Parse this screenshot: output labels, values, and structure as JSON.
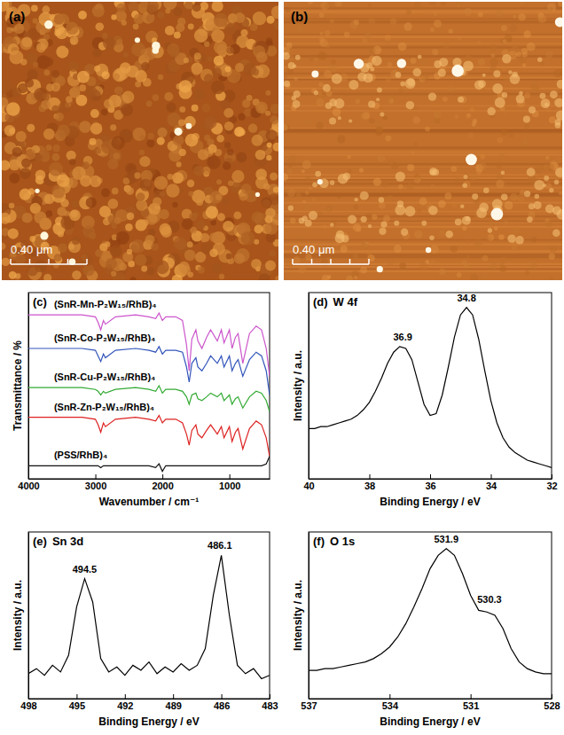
{
  "images": [
    {
      "panel": "(a)",
      "scale_bar": "0.40 μm"
    },
    {
      "panel": "(b)",
      "scale_bar": "0.40 μm"
    }
  ],
  "chart_data": [
    {
      "type": "line",
      "panel": "(c)",
      "x_label": "Wavenumber / cm⁻¹",
      "y_label": "Transmittance / %",
      "x": [
        4000,
        3500,
        3200,
        3000,
        2960,
        2920,
        2880,
        2850,
        2700,
        2400,
        2200,
        2100,
        2050,
        2000,
        1950,
        1800,
        1700,
        1640,
        1600,
        1560,
        1500,
        1470,
        1410,
        1340,
        1280,
        1180,
        1120,
        1080,
        1000,
        960,
        910,
        870,
        800,
        700,
        600,
        520,
        450,
        400
      ],
      "series": [
        {
          "name": "(SnR-Mn-P₂W₁₅/RhB)₄",
          "color": "#cc55cc",
          "values": [
            88,
            88,
            88,
            87,
            84,
            80,
            85,
            83,
            87,
            88,
            87,
            86,
            89,
            85,
            87,
            87,
            85,
            72,
            58,
            75,
            80,
            74,
            70,
            76,
            80,
            74,
            80,
            73,
            80,
            70,
            76,
            78,
            62,
            78,
            82,
            80,
            70,
            55
          ]
        },
        {
          "name": "(SnR-Co-P₂W₁₅/RhB)₄",
          "color": "#3355bb",
          "values": [
            70,
            70,
            70,
            69,
            66,
            63,
            67,
            65,
            69,
            70,
            69,
            68,
            71,
            67,
            69,
            69,
            68,
            60,
            52,
            62,
            65,
            60,
            58,
            62,
            66,
            62,
            66,
            60,
            66,
            58,
            62,
            64,
            55,
            64,
            68,
            66,
            58,
            45
          ]
        },
        {
          "name": "(SnR-Cu-P₂W₁₅/RhB)₄",
          "color": "#33aa33",
          "values": [
            49,
            49,
            49,
            48,
            47,
            45,
            47,
            46,
            48,
            49,
            48,
            47,
            50,
            46,
            48,
            48,
            47,
            44,
            40,
            45,
            46,
            43,
            42,
            44,
            46,
            44,
            46,
            42,
            45,
            40,
            43,
            44,
            38,
            44,
            47,
            46,
            42,
            36
          ]
        },
        {
          "name": "(SnR-Zn-P₂W₁₅/RhB)₄",
          "color": "#dd2222",
          "values": [
            33,
            33,
            33,
            32,
            29,
            25,
            30,
            28,
            32,
            33,
            32,
            31,
            34,
            30,
            32,
            32,
            30,
            24,
            18,
            26,
            29,
            24,
            22,
            26,
            29,
            24,
            28,
            22,
            28,
            20,
            25,
            27,
            16,
            27,
            31,
            29,
            22,
            12
          ]
        },
        {
          "name": "(PSS/RhB)₄",
          "color": "#111111",
          "values": [
            7,
            7,
            7,
            7,
            7,
            6,
            7,
            7,
            7,
            7,
            7,
            6,
            8,
            4,
            7,
            7,
            7,
            7,
            7,
            7,
            7,
            7,
            7,
            7,
            7,
            7,
            7,
            7,
            7,
            7,
            7,
            7,
            7,
            7,
            7,
            7,
            8,
            12
          ]
        }
      ],
      "xlim": [
        4000,
        400
      ],
      "xticks": [
        4000,
        3000,
        2000,
        1000
      ],
      "ylim": [
        0,
        100
      ],
      "yticks": [],
      "tick_labels": "x"
    },
    {
      "type": "line",
      "panel": "(d)",
      "title": "W 4f",
      "x_label": "Binding Energy / eV",
      "y_label": "Intensity / a.u.",
      "x": [
        40.0,
        39.8,
        39.6,
        39.4,
        39.2,
        39.0,
        38.8,
        38.6,
        38.4,
        38.2,
        38.0,
        37.8,
        37.6,
        37.4,
        37.2,
        37.0,
        36.8,
        36.6,
        36.4,
        36.2,
        36.0,
        35.8,
        35.6,
        35.4,
        35.2,
        35.0,
        34.8,
        34.6,
        34.4,
        34.2,
        34.0,
        33.8,
        33.6,
        33.4,
        33.2,
        33.0,
        32.8,
        32.6,
        32.4,
        32.2,
        32.0
      ],
      "values": [
        27,
        27,
        28,
        28,
        29,
        30,
        31,
        32,
        34,
        37,
        41,
        47,
        54,
        62,
        68,
        71,
        70,
        64,
        52,
        40,
        34,
        35,
        45,
        60,
        76,
        88,
        92,
        88,
        75,
        58,
        42,
        30,
        22,
        17,
        14,
        12,
        10,
        9,
        8,
        7,
        6
      ],
      "color": "#000000",
      "annotations": [
        {
          "text": "36.9",
          "x": 36.9,
          "y": 71
        },
        {
          "text": "34.8",
          "x": 34.8,
          "y": 92
        }
      ],
      "xlim": [
        40,
        32
      ],
      "xticks": [
        40,
        38,
        36,
        34,
        32
      ],
      "ylim": [
        0,
        100
      ],
      "yticks": [],
      "tick_labels": "x"
    },
    {
      "type": "line",
      "panel": "(e)",
      "title": "Sn 3d",
      "x_label": "Binding Energy / eV",
      "y_label": "Intensity / a.u.",
      "x": [
        498,
        497.5,
        497,
        496.5,
        496,
        495.5,
        495,
        494.5,
        494,
        493.5,
        493,
        492.5,
        492,
        491.5,
        491,
        490.5,
        490,
        489.5,
        489,
        488.5,
        488,
        487.5,
        487,
        486.5,
        486,
        485.5,
        485,
        484.5,
        484,
        483.5,
        483
      ],
      "values": [
        15,
        18,
        14,
        20,
        16,
        26,
        55,
        72,
        58,
        24,
        16,
        19,
        14,
        20,
        17,
        22,
        15,
        19,
        16,
        21,
        17,
        20,
        30,
        62,
        86,
        50,
        20,
        15,
        18,
        12,
        14
      ],
      "color": "#000000",
      "annotations": [
        {
          "text": "494.5",
          "x": 494.5,
          "y": 72
        },
        {
          "text": "486.1",
          "x": 486.1,
          "y": 86
        }
      ],
      "xlim": [
        498,
        483
      ],
      "xticks": [
        498,
        495,
        492,
        489,
        486,
        483
      ],
      "ylim": [
        0,
        100
      ],
      "yticks": [],
      "tick_labels": "x"
    },
    {
      "type": "line",
      "panel": "(f)",
      "title": "O 1s",
      "x_label": "Binding Energy / eV",
      "y_label": "Intensity / a.u.",
      "x": [
        537.0,
        536.7,
        536.4,
        536.1,
        535.8,
        535.5,
        535.2,
        534.9,
        534.6,
        534.3,
        534.0,
        533.7,
        533.4,
        533.1,
        532.8,
        532.5,
        532.2,
        531.9,
        531.6,
        531.3,
        531.0,
        530.7,
        530.4,
        530.1,
        529.8,
        529.5,
        529.2,
        528.9,
        528.6,
        528.3,
        528.0
      ],
      "values": [
        17,
        17,
        18,
        18,
        19,
        20,
        21,
        22,
        24,
        27,
        31,
        37,
        45,
        55,
        66,
        78,
        86,
        90,
        86,
        75,
        62,
        53,
        52,
        50,
        42,
        30,
        22,
        18,
        16,
        15,
        15
      ],
      "color": "#000000",
      "annotations": [
        {
          "text": "531.9",
          "x": 531.9,
          "y": 90
        },
        {
          "text": "530.3",
          "x": 530.3,
          "y": 52
        }
      ],
      "xlim": [
        537,
        528
      ],
      "xticks": [
        537,
        534,
        531,
        528
      ],
      "ylim": [
        0,
        100
      ],
      "yticks": [],
      "tick_labels": "x"
    }
  ]
}
